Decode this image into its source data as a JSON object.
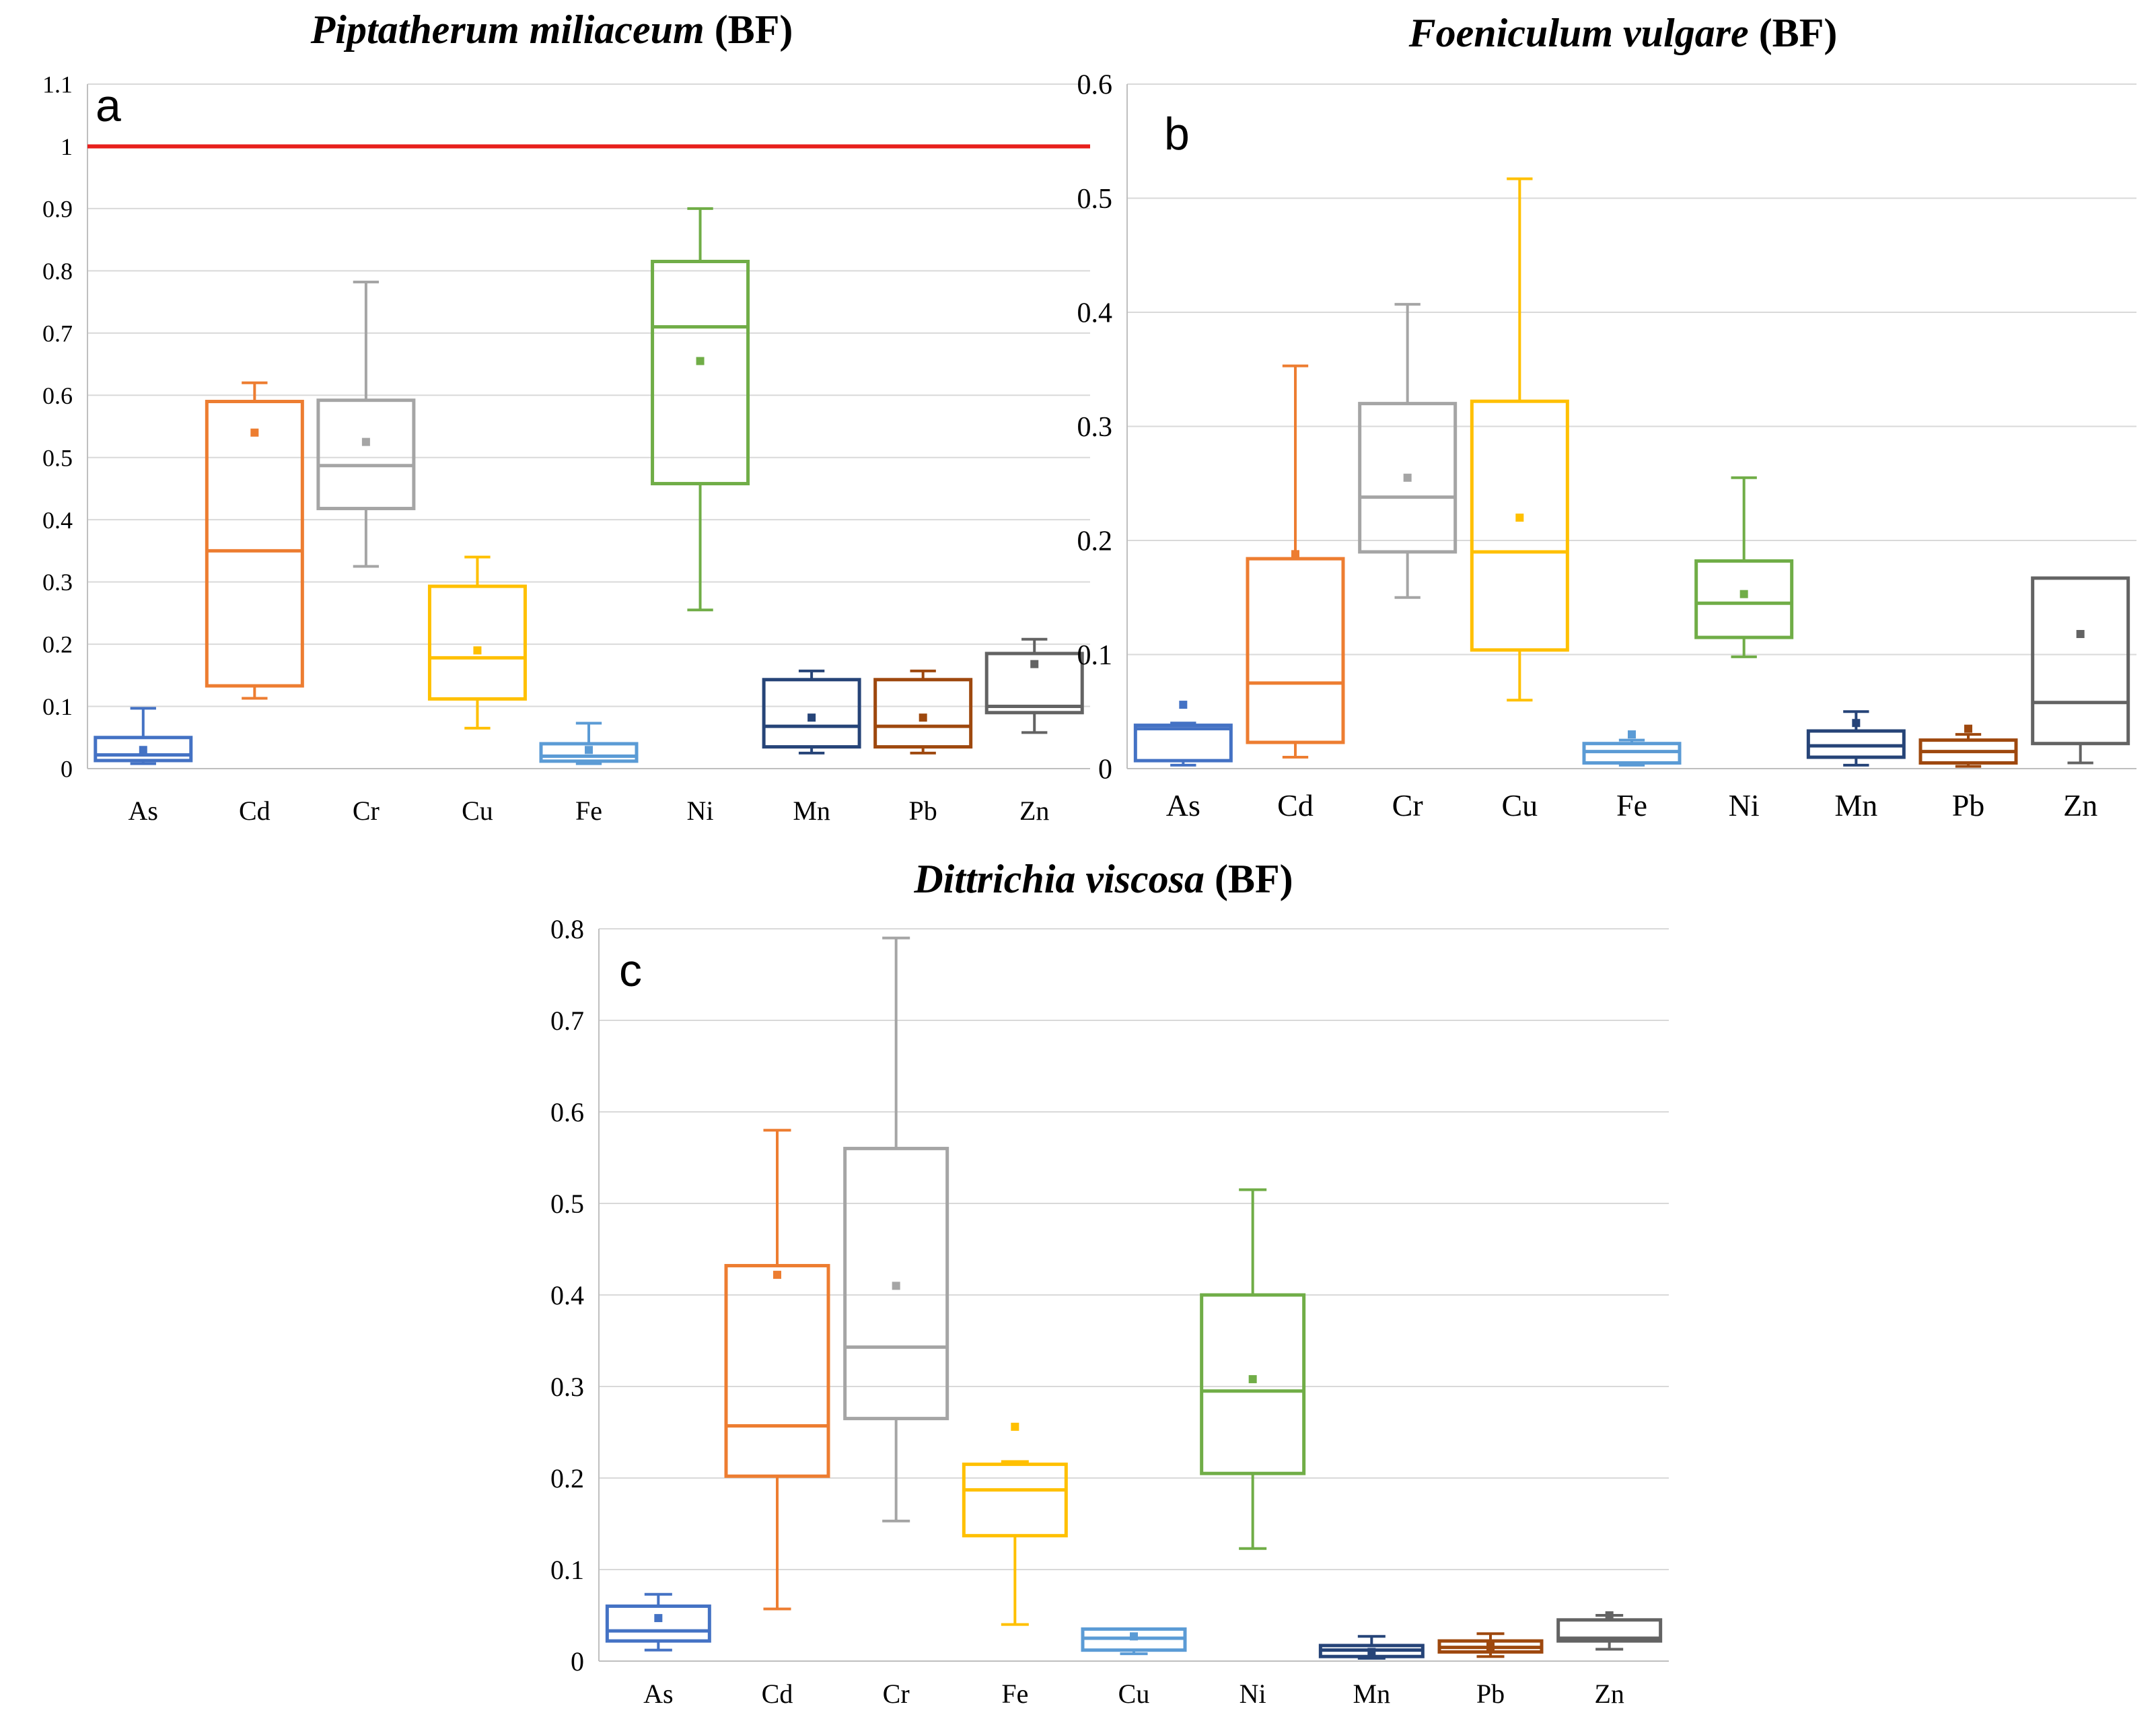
{
  "chart_data": [
    {
      "type": "boxplot",
      "panel_letter": "a",
      "title_species": "Piptatherum miliaceum",
      "title_suffix": " (BF)",
      "ylim": [
        0,
        1.1
      ],
      "yticks": [
        0,
        0.1,
        0.2,
        0.3,
        0.4,
        0.5,
        0.6,
        0.7,
        0.8,
        0.9,
        1,
        1.1
      ],
      "ytick_labels": [
        "0",
        "0.1",
        "0.2",
        "0.3",
        "0.4",
        "0.5",
        "0.6",
        "0.7",
        "0.8",
        "0.9",
        "1",
        "1.1"
      ],
      "reference_line": {
        "value": 1.0,
        "color": "#e8201c"
      },
      "grid": true,
      "categories": [
        "As",
        "Cd",
        "Cr",
        "Cu",
        "Fe",
        "Ni",
        "Mn",
        "Pb",
        "Zn"
      ],
      "boxes": [
        {
          "label": "As",
          "color": "#4472c4",
          "min": 0.008,
          "q1": 0.013,
          "median": 0.022,
          "q3": 0.05,
          "max": 0.097,
          "mean": 0.03
        },
        {
          "label": "Cd",
          "color": "#ed7d31",
          "min": 0.113,
          "q1": 0.133,
          "median": 0.35,
          "q3": 0.59,
          "max": 0.62,
          "mean": 0.54
        },
        {
          "label": "Cr",
          "color": "#a5a5a5",
          "min": 0.325,
          "q1": 0.418,
          "median": 0.487,
          "q3": 0.592,
          "max": 0.782,
          "mean": 0.525
        },
        {
          "label": "Cu",
          "color": "#ffc000",
          "min": 0.065,
          "q1": 0.112,
          "median": 0.178,
          "q3": 0.293,
          "max": 0.34,
          "mean": 0.19
        },
        {
          "label": "Fe",
          "color": "#5b9bd5",
          "min": 0.008,
          "q1": 0.012,
          "median": 0.02,
          "q3": 0.04,
          "max": 0.073,
          "mean": 0.03
        },
        {
          "label": "Ni",
          "color": "#70ad47",
          "min": 0.255,
          "q1": 0.458,
          "median": 0.71,
          "q3": 0.815,
          "max": 0.9,
          "mean": 0.655
        },
        {
          "label": "Mn",
          "color": "#264478",
          "min": 0.025,
          "q1": 0.035,
          "median": 0.068,
          "q3": 0.143,
          "max": 0.157,
          "mean": 0.082
        },
        {
          "label": "Pb",
          "color": "#9e480e",
          "min": 0.025,
          "q1": 0.035,
          "median": 0.068,
          "q3": 0.143,
          "max": 0.157,
          "mean": 0.082
        },
        {
          "label": "Zn",
          "color": "#636363",
          "min": 0.058,
          "q1": 0.09,
          "median": 0.1,
          "q3": 0.185,
          "max": 0.208,
          "mean": 0.168
        }
      ]
    },
    {
      "type": "boxplot",
      "panel_letter": "b",
      "title_species": "Foeniculum vulgare",
      "title_suffix": " (BF)",
      "ylim": [
        0,
        0.6
      ],
      "yticks": [
        0,
        0.1,
        0.2,
        0.3,
        0.4,
        0.5,
        0.6
      ],
      "ytick_labels": [
        "0",
        "0.1",
        "0.2",
        "0.3",
        "0.4",
        "0.5",
        "0.6"
      ],
      "grid": true,
      "categories": [
        "As",
        "Cd",
        "Cr",
        "Cu",
        "Fe",
        "Ni",
        "Mn",
        "Pb",
        "Zn"
      ],
      "boxes": [
        {
          "label": "As",
          "color": "#4472c4",
          "min": 0.003,
          "q1": 0.007,
          "median": 0.035,
          "q3": 0.038,
          "max": 0.04,
          "mean": 0.056
        },
        {
          "label": "Cd",
          "color": "#ed7d31",
          "min": 0.01,
          "q1": 0.023,
          "median": 0.075,
          "q3": 0.184,
          "max": 0.353,
          "mean": 0.188
        },
        {
          "label": "Cr",
          "color": "#a5a5a5",
          "min": 0.15,
          "q1": 0.19,
          "median": 0.238,
          "q3": 0.32,
          "max": 0.407,
          "mean": 0.255
        },
        {
          "label": "Cu",
          "color": "#ffc000",
          "min": 0.06,
          "q1": 0.104,
          "median": 0.19,
          "q3": 0.322,
          "max": 0.517,
          "mean": 0.22
        },
        {
          "label": "Fe",
          "color": "#5b9bd5",
          "min": 0.003,
          "q1": 0.005,
          "median": 0.015,
          "q3": 0.022,
          "max": 0.025,
          "mean": 0.03
        },
        {
          "label": "Ni",
          "color": "#70ad47",
          "min": 0.098,
          "q1": 0.115,
          "median": 0.145,
          "q3": 0.182,
          "max": 0.255,
          "mean": 0.153
        },
        {
          "label": "Mn",
          "color": "#264478",
          "min": 0.003,
          "q1": 0.01,
          "median": 0.02,
          "q3": 0.033,
          "max": 0.05,
          "mean": 0.04
        },
        {
          "label": "Pb",
          "color": "#9e480e",
          "min": 0.002,
          "q1": 0.005,
          "median": 0.015,
          "q3": 0.025,
          "max": 0.03,
          "mean": 0.035
        },
        {
          "label": "Zn",
          "color": "#636363",
          "min": 0.005,
          "q1": 0.022,
          "median": 0.058,
          "q3": 0.167,
          "max": 0.167,
          "mean": 0.118
        }
      ]
    },
    {
      "type": "boxplot",
      "panel_letter": "c",
      "title_species": "Dittrichia viscosa",
      "title_suffix": " (BF)",
      "ylim": [
        0,
        0.8
      ],
      "yticks": [
        0,
        0.1,
        0.2,
        0.3,
        0.4,
        0.5,
        0.6,
        0.7,
        0.8
      ],
      "ytick_labels": [
        "0",
        "0.1",
        "0.2",
        "0.3",
        "0.4",
        "0.5",
        "0.6",
        "0.7",
        "0.8"
      ],
      "grid": true,
      "categories": [
        "As",
        "Cd",
        "Cr",
        "Fe",
        "Cu",
        "Ni",
        "Mn",
        "Pb",
        "Zn"
      ],
      "boxes": [
        {
          "label": "As",
          "color": "#4472c4",
          "min": 0.012,
          "q1": 0.022,
          "median": 0.033,
          "q3": 0.06,
          "max": 0.073,
          "mean": 0.047
        },
        {
          "label": "Cd",
          "color": "#ed7d31",
          "min": 0.057,
          "q1": 0.202,
          "median": 0.257,
          "q3": 0.432,
          "max": 0.58,
          "mean": 0.422
        },
        {
          "label": "Cr",
          "color": "#a5a5a5",
          "min": 0.153,
          "q1": 0.265,
          "median": 0.343,
          "q3": 0.56,
          "max": 0.79,
          "mean": 0.41
        },
        {
          "label": "Fe",
          "color": "#ffc000",
          "min": 0.04,
          "q1": 0.137,
          "median": 0.187,
          "q3": 0.215,
          "max": 0.218,
          "mean": 0.256
        },
        {
          "label": "Cu",
          "color": "#5b9bd5",
          "min": 0.008,
          "q1": 0.012,
          "median": 0.025,
          "q3": 0.035,
          "max": 0.035,
          "mean": 0.027
        },
        {
          "label": "Ni",
          "color": "#70ad47",
          "min": 0.123,
          "q1": 0.205,
          "median": 0.295,
          "q3": 0.4,
          "max": 0.515,
          "mean": 0.308
        },
        {
          "label": "Mn",
          "color": "#264478",
          "min": 0.003,
          "q1": 0.005,
          "median": 0.012,
          "q3": 0.017,
          "max": 0.027,
          "mean": 0.01
        },
        {
          "label": "Pb",
          "color": "#9e480e",
          "min": 0.005,
          "q1": 0.01,
          "median": 0.015,
          "q3": 0.022,
          "max": 0.03,
          "mean": 0.016
        },
        {
          "label": "Zn",
          "color": "#636363",
          "min": 0.013,
          "q1": 0.022,
          "median": 0.025,
          "q3": 0.045,
          "max": 0.05,
          "mean": 0.05
        }
      ]
    }
  ]
}
